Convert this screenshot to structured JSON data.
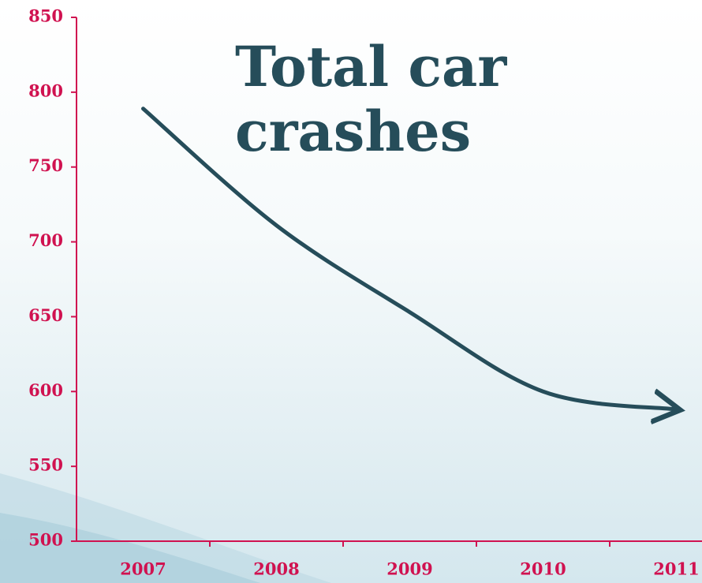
{
  "chart_data": {
    "type": "line",
    "title": "Total car crashes",
    "categories": [
      "2007",
      "2008",
      "2009",
      "2010",
      "2011"
    ],
    "values": [
      789,
      711,
      653,
      600,
      588
    ],
    "color": "#264d5a",
    "ylim": [
      500,
      850
    ],
    "yticks": [
      500,
      550,
      600,
      650,
      700,
      750,
      800,
      850
    ]
  }
}
